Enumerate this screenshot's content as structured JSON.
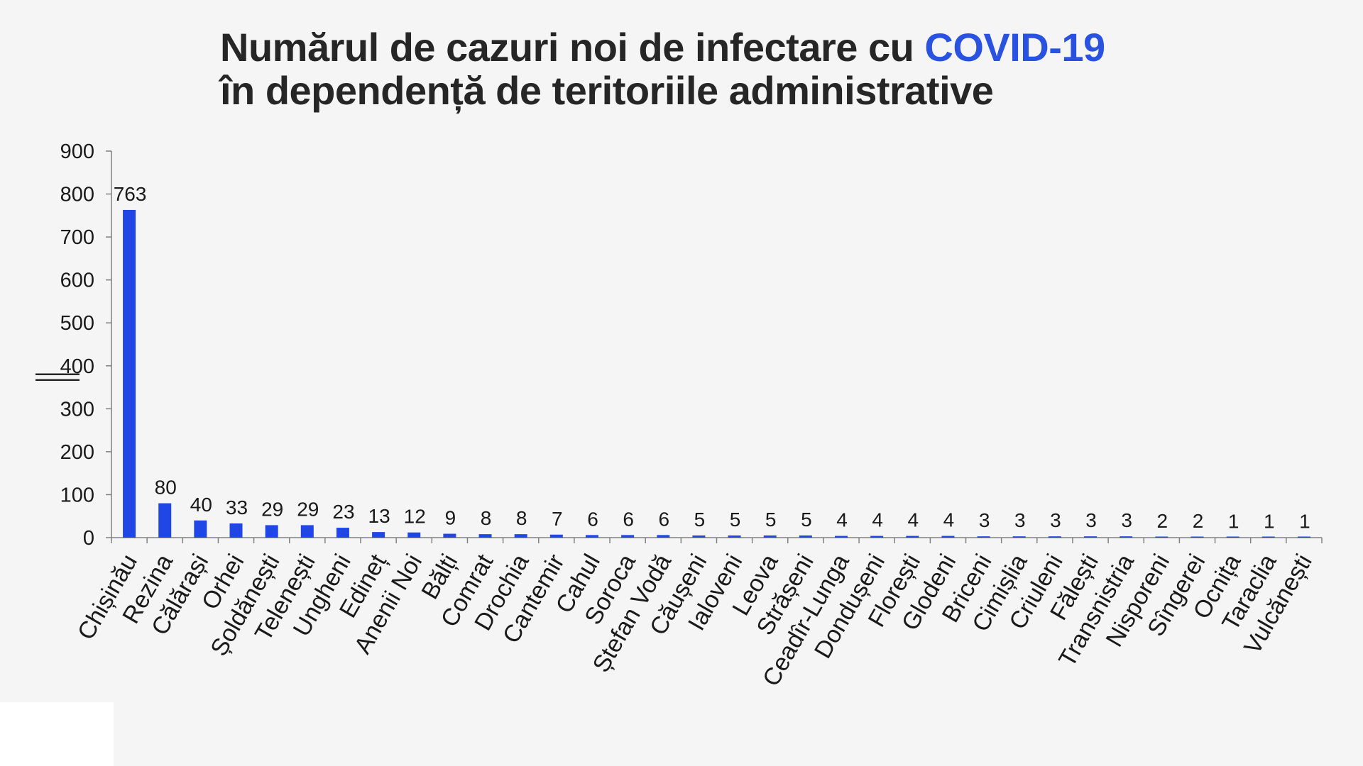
{
  "title": {
    "line1_prefix": "Numărul de cazuri noi de infectare cu ",
    "line1_highlight": "COVID-19",
    "line2": "în dependență de teritoriile administrative"
  },
  "colors": {
    "bar": "#2146e6",
    "highlight": "#2a52e0",
    "text": "#262626",
    "background": "#f5f5f5"
  },
  "chart_data": {
    "type": "bar",
    "title": "Numărul de cazuri noi de infectare cu COVID-19 în dependență de teritoriile administrative",
    "xlabel": "",
    "ylabel": "",
    "ylim": [
      0,
      900
    ],
    "yticks": [
      0,
      100,
      200,
      300,
      400,
      500,
      600,
      700,
      800,
      900
    ],
    "grid": false,
    "legend": "none",
    "categories": [
      "Chișinău",
      "Rezina",
      "Călărași",
      "Orhei",
      "Șoldănești",
      "Telenești",
      "Ungheni",
      "Edineț",
      "Anenii Noi",
      "Bălți",
      "Comrat",
      "Drochia",
      "Cantemir",
      "Cahul",
      "Soroca",
      "Ștefan Vodă",
      "Căușeni",
      "Ialoveni",
      "Leova",
      "Strășeni",
      "Ceadîr-Lunga",
      "Dondușeni",
      "Florești",
      "Glodeni",
      "Briceni",
      "Cimișlia",
      "Criuleni",
      "Fălești",
      "Transnistria",
      "Nisporeni",
      "Sîngerei",
      "Ocnița",
      "Taraclia",
      "Vulcănești"
    ],
    "values": [
      763,
      80,
      40,
      33,
      29,
      29,
      23,
      13,
      12,
      9,
      8,
      8,
      7,
      6,
      6,
      6,
      5,
      5,
      5,
      5,
      4,
      4,
      4,
      4,
      3,
      3,
      3,
      3,
      3,
      2,
      2,
      1,
      1,
      1
    ]
  }
}
